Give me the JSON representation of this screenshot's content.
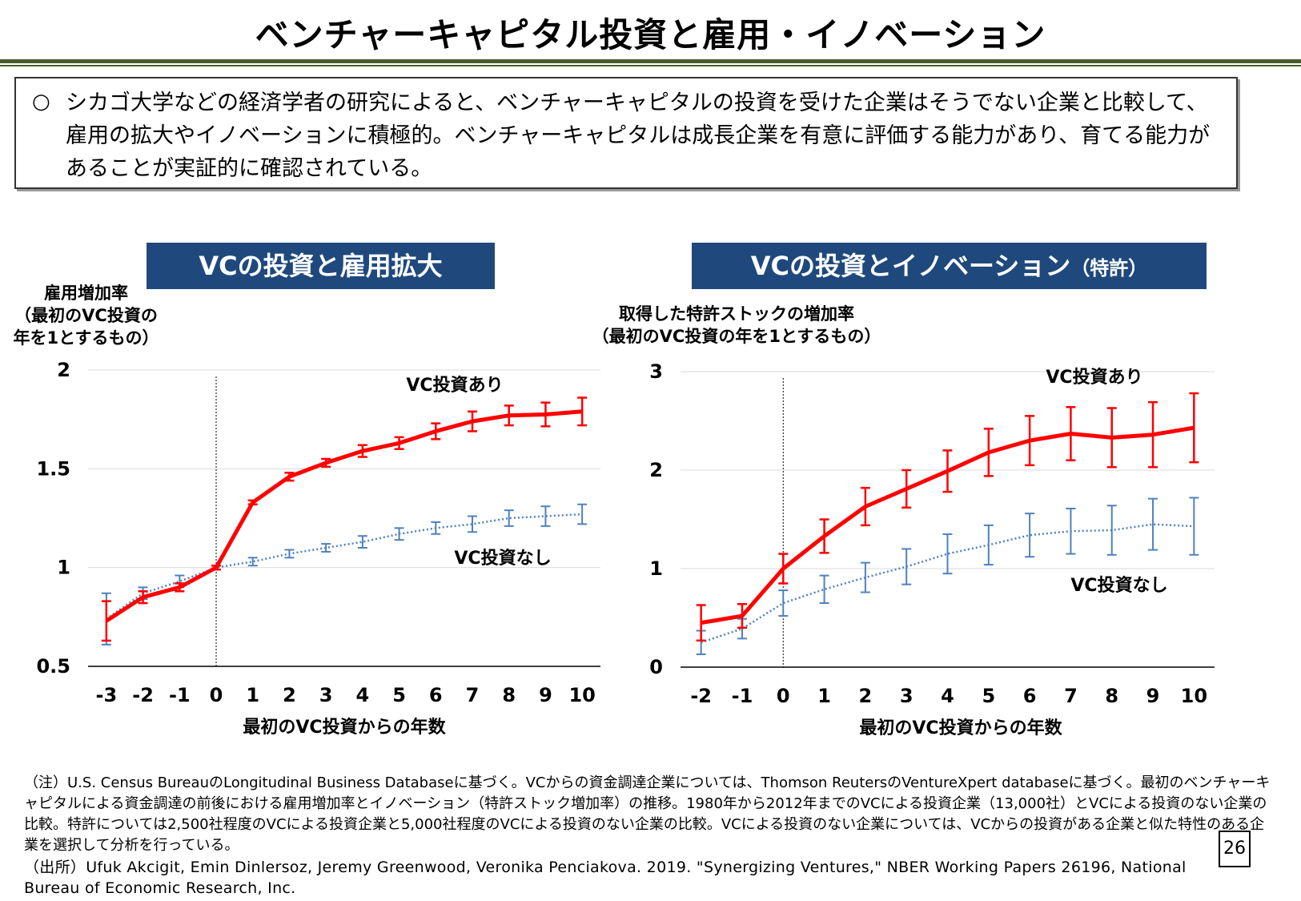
{
  "header": {
    "title": "ベンチャーキャピタル投資と雇用・イノベーション"
  },
  "lead": {
    "bullet": "○",
    "text": "シカゴ大学などの経済学者の研究によると、ベンチャーキャピタルの投資を受けた企業はそうでない企業と比較して、雇用の拡大やイノベーションに積極的。ベンチャーキャピタルは成長企業を有意に評価する能力があり、育てる能力があることが実証的に確認されている。"
  },
  "chart_data": [
    {
      "type": "line",
      "title": "VCの投資と雇用拡大",
      "y_label": [
        "雇用増加率",
        "（最初のVC投資の",
        "年を1とするもの）"
      ],
      "x_label": "最初のVC投資からの年数",
      "categories": [
        "-3",
        "-2",
        "-1",
        "0",
        "1",
        "2",
        "3",
        "4",
        "5",
        "6",
        "7",
        "8",
        "9",
        "10"
      ],
      "vline": 0,
      "ylim": [
        0.5,
        2
      ],
      "yticks": [
        0.5,
        1,
        1.5,
        2
      ],
      "grid": true,
      "series": [
        {
          "name": "VC投資あり",
          "color": "#ff0000",
          "style": "solid",
          "values": [
            0.73,
            0.85,
            0.9,
            1.0,
            1.33,
            1.46,
            1.53,
            1.59,
            1.63,
            1.69,
            1.74,
            1.77,
            1.775,
            1.79
          ],
          "errors": [
            0.1,
            0.03,
            0.02,
            0.01,
            0.01,
            0.02,
            0.02,
            0.03,
            0.03,
            0.04,
            0.05,
            0.05,
            0.06,
            0.07
          ]
        },
        {
          "name": "VC投資なし",
          "color": "#4f81bd",
          "style": "dotted",
          "values": [
            0.74,
            0.87,
            0.93,
            1.0,
            1.03,
            1.07,
            1.1,
            1.13,
            1.17,
            1.2,
            1.22,
            1.25,
            1.26,
            1.27
          ],
          "errors": [
            0.13,
            0.03,
            0.03,
            0.01,
            0.02,
            0.02,
            0.02,
            0.03,
            0.03,
            0.03,
            0.04,
            0.04,
            0.05,
            0.05
          ]
        }
      ]
    },
    {
      "type": "line",
      "title": "VCの投資とイノベーション",
      "title_note": "（特許）",
      "y_label": [
        "取得した特許ストックの増加率",
        "（最初のVC投資の年を1とするもの）"
      ],
      "x_label": "最初のVC投資からの年数",
      "categories": [
        "-2",
        "-1",
        "0",
        "1",
        "2",
        "3",
        "4",
        "5",
        "6",
        "7",
        "8",
        "9",
        "10"
      ],
      "vline": 0,
      "ylim": [
        0,
        3
      ],
      "yticks": [
        0,
        1,
        2,
        3
      ],
      "grid": true,
      "series": [
        {
          "name": "VC投資あり",
          "color": "#ff0000",
          "style": "solid",
          "values": [
            0.45,
            0.52,
            1.0,
            1.33,
            1.63,
            1.81,
            1.99,
            2.18,
            2.3,
            2.37,
            2.33,
            2.36,
            2.43
          ],
          "errors": [
            0.18,
            0.12,
            0.15,
            0.17,
            0.19,
            0.19,
            0.21,
            0.24,
            0.25,
            0.27,
            0.3,
            0.33,
            0.35
          ]
        },
        {
          "name": "VC投資なし",
          "color": "#4f81bd",
          "style": "dotted",
          "values": [
            0.25,
            0.39,
            0.65,
            0.79,
            0.91,
            1.02,
            1.15,
            1.24,
            1.34,
            1.38,
            1.39,
            1.45,
            1.43
          ],
          "errors": [
            0.12,
            0.1,
            0.13,
            0.14,
            0.15,
            0.18,
            0.2,
            0.2,
            0.22,
            0.23,
            0.25,
            0.26,
            0.29
          ]
        }
      ]
    }
  ],
  "footer": {
    "note": "（注）U.S. Census BureauのLongitudinal Business Databaseに基づく。VCからの資金調達企業については、Thomson ReutersのVentureXpert databaseに基づく。最初のベンチャーキャピタルによる資金調達の前後における雇用増加率とイノベーション（特許ストック増加率）の推移。1980年から2012年までのVCによる投資企業（13,000社）とVCによる投資のない企業の比較。特許については2,500社程度のVCによる投資企業と5,000社程度のVCによる投資のない企業の比較。VCによる投資のない企業については、VCからの投資がある企業と似た特性のある企業を選択して分析を行っている。",
    "source": "（出所）Ufuk Akcigit, Emin Dinlersoz, Jeremy Greenwood, Veronika Penciakova. 2019. \"Synergizing Ventures,\" NBER Working Papers 26196, National Bureau of Economic Research, Inc.",
    "page": "26"
  }
}
